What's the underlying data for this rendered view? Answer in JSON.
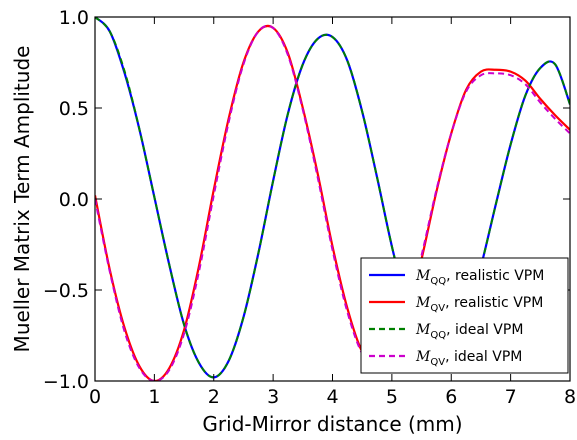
{
  "chart_data": {
    "type": "line",
    "title": "",
    "xlabel": "Grid-Mirror distance (mm)",
    "ylabel": "Mueller Matrix Term Amplitude",
    "xlim": [
      0,
      8
    ],
    "ylim": [
      -1.0,
      1.0
    ],
    "x_ticks": [
      "0",
      "1",
      "2",
      "3",
      "4",
      "5",
      "6",
      "7",
      "8"
    ],
    "y_ticks": [
      "1.0",
      "0.5",
      "0.0",
      "−0.5",
      "−1.0"
    ],
    "grid": false,
    "legend_position": "lower-right",
    "x": [
      0,
      0.25,
      0.5,
      0.75,
      1,
      1.25,
      1.5,
      1.75,
      2,
      2.25,
      2.5,
      2.75,
      3,
      3.25,
      3.5,
      3.75,
      4,
      4.25,
      4.5,
      4.75,
      5,
      5.25,
      5.5,
      5.75,
      6,
      6.25,
      6.5,
      6.75,
      7,
      7.25,
      7.5,
      7.75,
      8
    ],
    "series": [
      {
        "name": "realistic VPM",
        "math": "M",
        "sub": "QQ",
        "color": "#0000ff",
        "dash": "solid",
        "values": [
          1.0,
          0.92,
          0.69,
          0.38,
          0.01,
          -0.36,
          -0.69,
          -0.9,
          -0.98,
          -0.89,
          -0.65,
          -0.3,
          0.1,
          0.47,
          0.74,
          0.88,
          0.89,
          0.76,
          0.48,
          0.12,
          -0.26,
          -0.58,
          -0.8,
          -0.89,
          -0.85,
          -0.65,
          -0.37,
          -0.03,
          0.3,
          0.57,
          0.72,
          0.74,
          0.52
        ]
      },
      {
        "name": "realistic VPM",
        "math": "M",
        "sub": "QV",
        "color": "#ff0000",
        "dash": "solid",
        "values": [
          0.02,
          -0.39,
          -0.71,
          -0.92,
          -1.0,
          -0.93,
          -0.72,
          -0.37,
          0.05,
          0.44,
          0.75,
          0.92,
          0.94,
          0.8,
          0.5,
          0.14,
          -0.26,
          -0.6,
          -0.84,
          -0.93,
          -0.87,
          -0.65,
          -0.33,
          0.04,
          0.36,
          0.6,
          0.7,
          0.71,
          0.7,
          0.65,
          0.55,
          0.46,
          0.38
        ]
      },
      {
        "name": "ideal VPM",
        "math": "M",
        "sub": "QQ",
        "color": "#008000",
        "dash": "dashed",
        "values": [
          1.0,
          0.92,
          0.7,
          0.38,
          0.01,
          -0.36,
          -0.69,
          -0.9,
          -0.98,
          -0.89,
          -0.65,
          -0.3,
          0.1,
          0.47,
          0.74,
          0.88,
          0.89,
          0.76,
          0.48,
          0.12,
          -0.26,
          -0.58,
          -0.8,
          -0.89,
          -0.85,
          -0.65,
          -0.37,
          -0.03,
          0.3,
          0.57,
          0.72,
          0.74,
          0.52
        ]
      },
      {
        "name": "ideal VPM",
        "math": "M",
        "sub": "QV",
        "color": "#cc00cc",
        "dash": "dashed",
        "values": [
          0.0,
          -0.4,
          -0.73,
          -0.93,
          -1.0,
          -0.94,
          -0.74,
          -0.4,
          0.02,
          0.42,
          0.74,
          0.92,
          0.94,
          0.79,
          0.49,
          0.12,
          -0.28,
          -0.62,
          -0.85,
          -0.93,
          -0.86,
          -0.63,
          -0.31,
          0.05,
          0.36,
          0.59,
          0.68,
          0.69,
          0.68,
          0.63,
          0.53,
          0.44,
          0.36
        ]
      }
    ]
  }
}
